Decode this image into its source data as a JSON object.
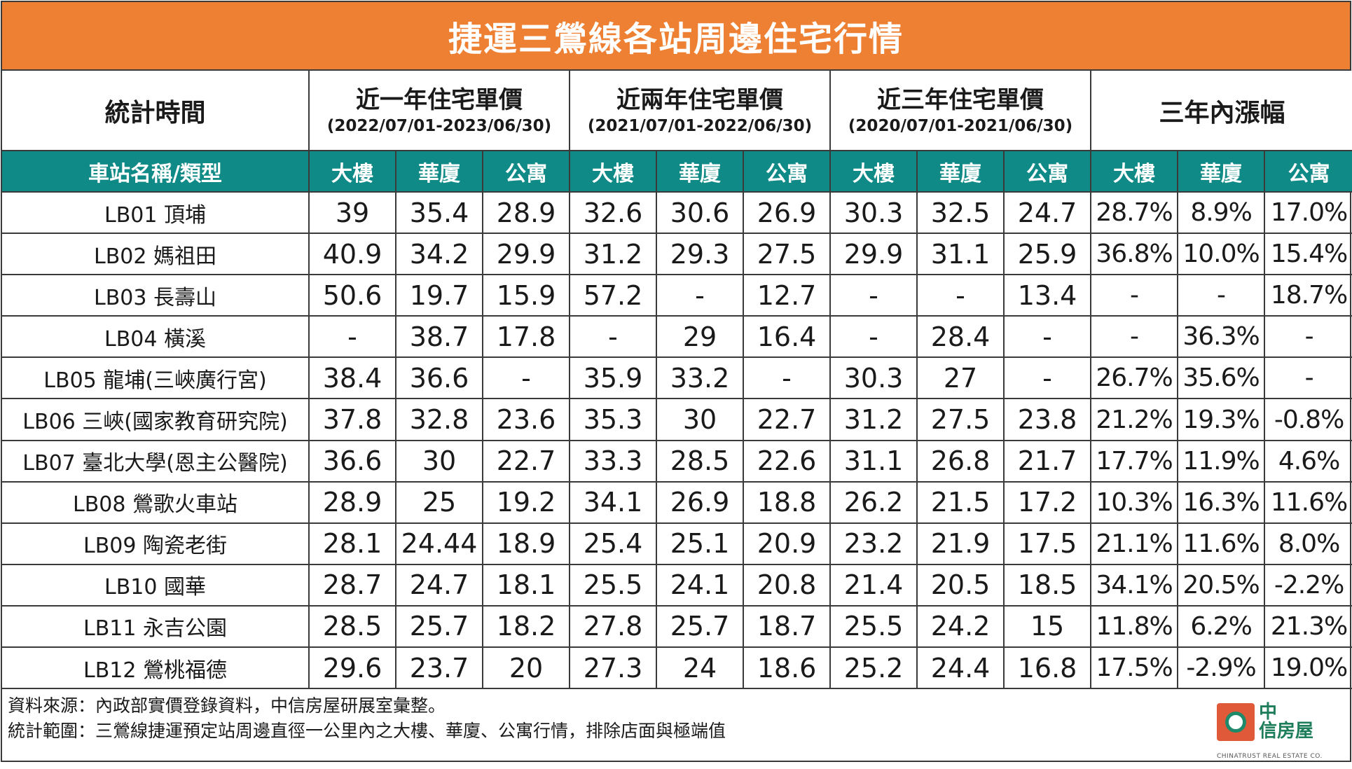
{
  "title": "捷運三鶯線各站周邊住宅行情",
  "header": {
    "period_label": "統計時間",
    "groups": [
      {
        "title": "近一年住宅單價",
        "range": "(2022/07/01-2023/06/30)"
      },
      {
        "title": "近兩年住宅單價",
        "range": "(2021/07/01-2022/06/30)"
      },
      {
        "title": "近三年住宅單價",
        "range": "(2020/07/01-2021/06/30)"
      },
      {
        "title": "三年內漲幅",
        "range": ""
      }
    ],
    "station_label": "車站名稱/類型",
    "types": [
      "大樓",
      "華廈",
      "公寓",
      "大樓",
      "華廈",
      "公寓",
      "大樓",
      "華廈",
      "公寓",
      "大樓",
      "華廈",
      "公寓"
    ]
  },
  "rows": [
    {
      "station": "LB01 頂埔",
      "values": [
        "39",
        "35.4",
        "28.9",
        "32.6",
        "30.6",
        "26.9",
        "30.3",
        "32.5",
        "24.7",
        "28.7%",
        "8.9%",
        "17.0%"
      ]
    },
    {
      "station": "LB02 媽祖田",
      "values": [
        "40.9",
        "34.2",
        "29.9",
        "31.2",
        "29.3",
        "27.5",
        "29.9",
        "31.1",
        "25.9",
        "36.8%",
        "10.0%",
        "15.4%"
      ]
    },
    {
      "station": "LB03 長壽山",
      "values": [
        "50.6",
        "19.7",
        "15.9",
        "57.2",
        "-",
        "12.7",
        "-",
        "-",
        "13.4",
        "-",
        "-",
        "18.7%"
      ]
    },
    {
      "station": "LB04 橫溪",
      "values": [
        "-",
        "38.7",
        "17.8",
        "-",
        "29",
        "16.4",
        "-",
        "28.4",
        "-",
        "-",
        "36.3%",
        "-"
      ]
    },
    {
      "station": "LB05 龍埔(三峽廣行宮)",
      "values": [
        "38.4",
        "36.6",
        "-",
        "35.9",
        "33.2",
        "-",
        "30.3",
        "27",
        "-",
        "26.7%",
        "35.6%",
        "-"
      ]
    },
    {
      "station": "LB06 三峽(國家教育研究院)",
      "values": [
        "37.8",
        "32.8",
        "23.6",
        "35.3",
        "30",
        "22.7",
        "31.2",
        "27.5",
        "23.8",
        "21.2%",
        "19.3%",
        "-0.8%"
      ]
    },
    {
      "station": "LB07 臺北大學(恩主公醫院)",
      "values": [
        "36.6",
        "30",
        "22.7",
        "33.3",
        "28.5",
        "22.6",
        "31.1",
        "26.8",
        "21.7",
        "17.7%",
        "11.9%",
        "4.6%"
      ]
    },
    {
      "station": "LB08  鶯歌火車站",
      "values": [
        "28.9",
        "25",
        "19.2",
        "34.1",
        "26.9",
        "18.8",
        "26.2",
        "21.5",
        "17.2",
        "10.3%",
        "16.3%",
        "11.6%"
      ]
    },
    {
      "station": "LB09  陶瓷老街",
      "values": [
        "28.1",
        "24.44",
        "18.9",
        "25.4",
        "25.1",
        "20.9",
        "23.2",
        "21.9",
        "17.5",
        "21.1%",
        "11.6%",
        "8.0%"
      ]
    },
    {
      "station": "LB10  國華",
      "values": [
        "28.7",
        "24.7",
        "18.1",
        "25.5",
        "24.1",
        "20.8",
        "21.4",
        "20.5",
        "18.5",
        "34.1%",
        "20.5%",
        "-2.2%"
      ]
    },
    {
      "station": "LB11  永吉公園",
      "values": [
        "28.5",
        "25.7",
        "18.2",
        "27.8",
        "25.7",
        "18.7",
        "25.5",
        "24.2",
        "15",
        "11.8%",
        "6.2%",
        "21.3%"
      ]
    },
    {
      "station": "LB12  鶯桃福德",
      "values": [
        "29.6",
        "23.7",
        "20",
        "27.3",
        "24",
        "18.6",
        "25.2",
        "24.4",
        "16.8",
        "17.5%",
        "-2.9%",
        "19.0%"
      ]
    }
  ],
  "footer": {
    "source": "資料來源：內政部實價登錄資料，中信房屋研展室彙整。",
    "scope": "統計範圍：三鶯線捷運預定站周邊直徑一公里內之大樓、華廈、公寓行情，排除店面與極端值"
  },
  "logo": {
    "brand_line1": "中",
    "brand_line2": "信房屋",
    "english": "CHINATRUST REAL ESTATE CO."
  },
  "colors": {
    "title_bg": "#ee8033",
    "subheader_bg": "#108a86",
    "logo_red": "#e05a3a",
    "logo_green": "#1e7d5a"
  }
}
